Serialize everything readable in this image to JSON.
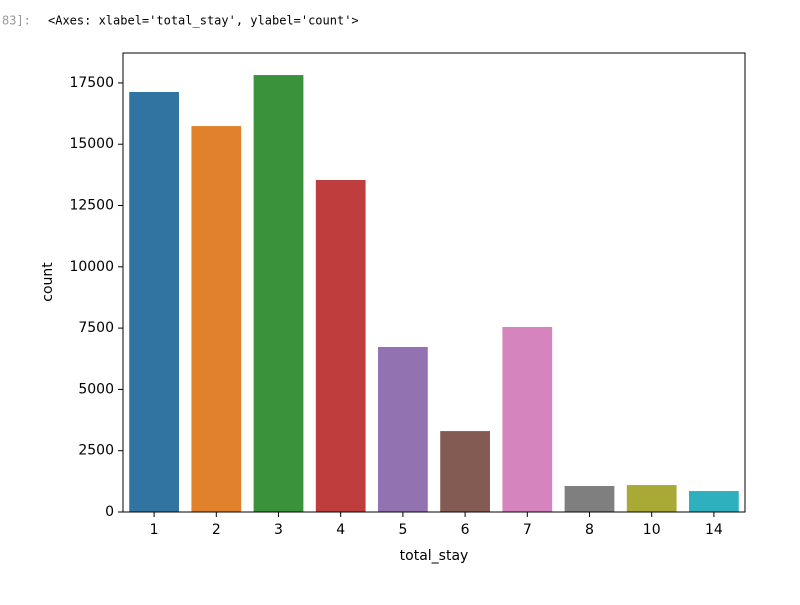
{
  "prompt": "83]:",
  "output_text": "<Axes: xlabel='total_stay', ylabel='count'>",
  "chart_data": {
    "type": "bar",
    "xlabel": "total_stay",
    "ylabel": "count",
    "categories": [
      "1",
      "2",
      "3",
      "4",
      "5",
      "6",
      "7",
      "8",
      "10",
      "14"
    ],
    "values": [
      17130,
      15740,
      17820,
      13540,
      6730,
      3300,
      7545,
      1060,
      1100,
      855
    ],
    "colors": [
      "#3274a1",
      "#e1812c",
      "#3a923a",
      "#c03d3e",
      "#9372b2",
      "#845b53",
      "#d684bd",
      "#7f7f7f",
      "#a9aa35",
      "#2eb0be"
    ],
    "ylim": [
      0,
      18720
    ],
    "yticks": [
      0,
      2500,
      5000,
      7500,
      10000,
      12500,
      15000,
      17500
    ],
    "grid": false
  }
}
